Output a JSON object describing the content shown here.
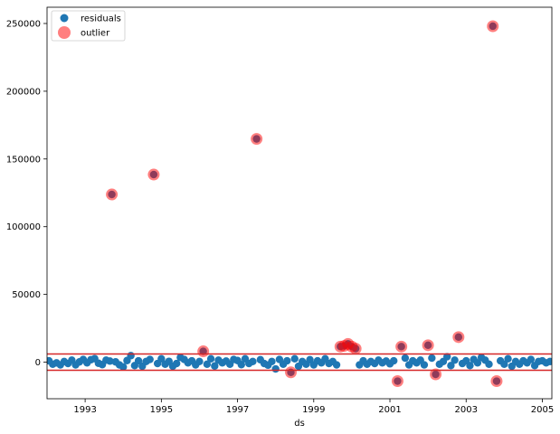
{
  "chart_data": {
    "type": "scatter",
    "title": "",
    "xlabel": "ds",
    "ylabel": "",
    "xlim": [
      1992.0,
      2005.25
    ],
    "ylim": [
      -27000,
      262000
    ],
    "x_ticks": [
      1993,
      1995,
      1997,
      1999,
      2001,
      2003,
      2005
    ],
    "x_tick_labels": [
      "1993",
      "1995",
      "1997",
      "1999",
      "2001",
      "2003",
      "2005"
    ],
    "y_ticks": [
      0,
      50000,
      100000,
      150000,
      200000,
      250000
    ],
    "y_tick_labels": [
      "0",
      "50000",
      "100000",
      "150000",
      "200000",
      "250000"
    ],
    "grid": false,
    "legend": {
      "position": "top-left",
      "entries": [
        "residuals",
        "outlier"
      ]
    },
    "threshold_lines": [
      6000,
      -6000
    ],
    "colors": {
      "residuals": "#1f77b4",
      "outlier": "#ff0000",
      "threshold": "#d62728"
    },
    "series": [
      {
        "name": "residuals",
        "points": [
          [
            1992.05,
            1000
          ],
          [
            1992.15,
            -1500
          ],
          [
            1992.25,
            -500
          ],
          [
            1992.35,
            -2000
          ],
          [
            1992.45,
            500
          ],
          [
            1992.55,
            -1000
          ],
          [
            1992.65,
            1500
          ],
          [
            1992.75,
            -2000
          ],
          [
            1992.85,
            200
          ],
          [
            1992.95,
            2000
          ],
          [
            1993.05,
            -500
          ],
          [
            1993.15,
            1800
          ],
          [
            1993.25,
            2600
          ],
          [
            1993.35,
            -800
          ],
          [
            1993.45,
            -1800
          ],
          [
            1993.55,
            1500
          ],
          [
            1993.65,
            800
          ],
          [
            1993.7,
            123800
          ],
          [
            1993.8,
            200
          ],
          [
            1993.9,
            -2000
          ],
          [
            1994.0,
            -3500
          ],
          [
            1994.1,
            1200
          ],
          [
            1994.2,
            4800
          ],
          [
            1994.3,
            -2500
          ],
          [
            1994.4,
            1000
          ],
          [
            1994.5,
            -3000
          ],
          [
            1994.6,
            500
          ],
          [
            1994.7,
            2000
          ],
          [
            1994.8,
            138500
          ],
          [
            1994.9,
            -1000
          ],
          [
            1995.0,
            2500
          ],
          [
            1995.1,
            -1500
          ],
          [
            1995.2,
            600
          ],
          [
            1995.3,
            -3000
          ],
          [
            1995.4,
            -1000
          ],
          [
            1995.5,
            3500
          ],
          [
            1995.6,
            2000
          ],
          [
            1995.7,
            -500
          ],
          [
            1995.8,
            1000
          ],
          [
            1995.9,
            -2000
          ],
          [
            1996.0,
            500
          ],
          [
            1996.1,
            8000
          ],
          [
            1996.2,
            -1500
          ],
          [
            1996.3,
            2500
          ],
          [
            1996.4,
            -2800
          ],
          [
            1996.5,
            1500
          ],
          [
            1996.6,
            -500
          ],
          [
            1996.7,
            800
          ],
          [
            1996.8,
            -1500
          ],
          [
            1996.9,
            2000
          ],
          [
            1997.0,
            1200
          ],
          [
            1997.1,
            -1800
          ],
          [
            1997.2,
            2500
          ],
          [
            1997.3,
            -1000
          ],
          [
            1997.4,
            500
          ],
          [
            1997.5,
            164800
          ],
          [
            1997.6,
            1800
          ],
          [
            1997.7,
            -1000
          ],
          [
            1997.8,
            -2200
          ],
          [
            1997.9,
            500
          ],
          [
            1998.0,
            -5000
          ],
          [
            1998.1,
            2000
          ],
          [
            1998.2,
            -1500
          ],
          [
            1998.3,
            1000
          ],
          [
            1998.4,
            -7500
          ],
          [
            1998.5,
            2500
          ],
          [
            1998.6,
            -3000
          ],
          [
            1998.7,
            500
          ],
          [
            1998.8,
            -1500
          ],
          [
            1998.9,
            1800
          ],
          [
            1999.0,
            -2000
          ],
          [
            1999.1,
            1000
          ],
          [
            1999.2,
            -500
          ],
          [
            1999.3,
            2500
          ],
          [
            1999.4,
            -1000
          ],
          [
            1999.5,
            500
          ],
          [
            1999.6,
            -2000
          ],
          [
            1999.7,
            11500
          ],
          [
            1999.8,
            12000
          ],
          [
            1999.9,
            13500
          ],
          [
            2000.0,
            11500
          ],
          [
            2000.1,
            10000
          ],
          [
            2000.2,
            -2000
          ],
          [
            2000.3,
            1000
          ],
          [
            2000.4,
            -1500
          ],
          [
            2000.5,
            500
          ],
          [
            2000.6,
            -1000
          ],
          [
            2000.7,
            1500
          ],
          [
            2000.8,
            -500
          ],
          [
            2000.9,
            800
          ],
          [
            2001.0,
            -1200
          ],
          [
            2001.1,
            1000
          ],
          [
            2001.2,
            -14000
          ],
          [
            2001.3,
            11500
          ],
          [
            2001.4,
            3000
          ],
          [
            2001.5,
            -2000
          ],
          [
            2001.6,
            1000
          ],
          [
            2001.7,
            -500
          ],
          [
            2001.8,
            1500
          ],
          [
            2001.9,
            -2000
          ],
          [
            2002.0,
            12500
          ],
          [
            2002.1,
            3000
          ],
          [
            2002.2,
            -9000
          ],
          [
            2002.3,
            -1500
          ],
          [
            2002.4,
            500
          ],
          [
            2002.5,
            4000
          ],
          [
            2002.6,
            -2500
          ],
          [
            2002.7,
            1500
          ],
          [
            2002.8,
            18500
          ],
          [
            2002.9,
            -1000
          ],
          [
            2003.0,
            1000
          ],
          [
            2003.1,
            -2500
          ],
          [
            2003.2,
            2000
          ],
          [
            2003.3,
            -500
          ],
          [
            2003.4,
            3500
          ],
          [
            2003.5,
            1500
          ],
          [
            2003.6,
            -1500
          ],
          [
            2003.7,
            248000
          ],
          [
            2003.8,
            -14000
          ],
          [
            2003.9,
            1000
          ],
          [
            2004.0,
            -1500
          ],
          [
            2004.1,
            2500
          ],
          [
            2004.2,
            -3000
          ],
          [
            2004.3,
            500
          ],
          [
            2004.4,
            -1500
          ],
          [
            2004.5,
            1000
          ],
          [
            2004.6,
            -500
          ],
          [
            2004.7,
            2000
          ],
          [
            2004.8,
            -2500
          ],
          [
            2004.9,
            500
          ],
          [
            2005.0,
            1000
          ],
          [
            2005.1,
            -500
          ],
          [
            2005.2,
            500
          ]
        ]
      },
      {
        "name": "outlier",
        "points": [
          [
            1993.7,
            123800
          ],
          [
            1994.8,
            138500
          ],
          [
            1996.1,
            8000
          ],
          [
            1997.5,
            164800
          ],
          [
            1998.4,
            -7500
          ],
          [
            1999.7,
            11500
          ],
          [
            1999.8,
            12000
          ],
          [
            1999.9,
            13500
          ],
          [
            2000.0,
            11500
          ],
          [
            2000.1,
            10000
          ],
          [
            2001.2,
            -14000
          ],
          [
            2001.3,
            11500
          ],
          [
            2002.0,
            12500
          ],
          [
            2002.2,
            -9000
          ],
          [
            2002.8,
            18500
          ],
          [
            2003.7,
            248000
          ],
          [
            2003.8,
            -14000
          ]
        ]
      }
    ]
  }
}
